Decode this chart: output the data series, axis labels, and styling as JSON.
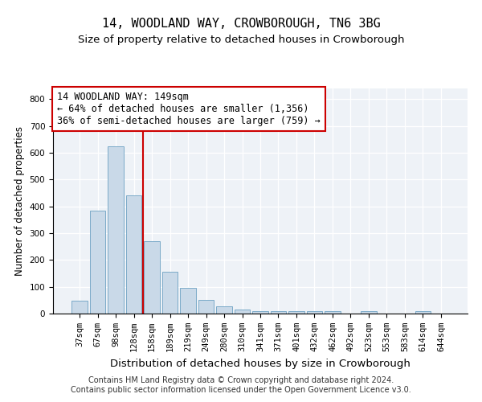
{
  "title": "14, WOODLAND WAY, CROWBOROUGH, TN6 3BG",
  "subtitle": "Size of property relative to detached houses in Crowborough",
  "xlabel": "Distribution of detached houses by size in Crowborough",
  "ylabel": "Number of detached properties",
  "bar_labels": [
    "37sqm",
    "67sqm",
    "98sqm",
    "128sqm",
    "158sqm",
    "189sqm",
    "219sqm",
    "249sqm",
    "280sqm",
    "310sqm",
    "341sqm",
    "371sqm",
    "401sqm",
    "432sqm",
    "462sqm",
    "492sqm",
    "523sqm",
    "553sqm",
    "583sqm",
    "614sqm",
    "644sqm"
  ],
  "bar_values": [
    47,
    385,
    625,
    440,
    270,
    155,
    97,
    52,
    28,
    15,
    10,
    10,
    10,
    10,
    10,
    0,
    10,
    0,
    0,
    10,
    0
  ],
  "bar_color": "#c9d9e8",
  "bar_edgecolor": "#7aaac8",
  "vline_bar_index": 3,
  "vline_color": "#cc0000",
  "annotation_line1": "14 WOODLAND WAY: 149sqm",
  "annotation_line2": "← 64% of detached houses are smaller (1,356)",
  "annotation_line3": "36% of semi-detached houses are larger (759) →",
  "annotation_box_color": "#cc0000",
  "ylim": [
    0,
    840
  ],
  "yticks": [
    0,
    100,
    200,
    300,
    400,
    500,
    600,
    700,
    800
  ],
  "footer": "Contains HM Land Registry data © Crown copyright and database right 2024.\nContains public sector information licensed under the Open Government Licence v3.0.",
  "title_fontsize": 11,
  "subtitle_fontsize": 9.5,
  "xlabel_fontsize": 9.5,
  "ylabel_fontsize": 8.5,
  "tick_fontsize": 7.5,
  "footer_fontsize": 7,
  "annotation_fontsize": 8.5,
  "bg_color": "#eef2f7"
}
